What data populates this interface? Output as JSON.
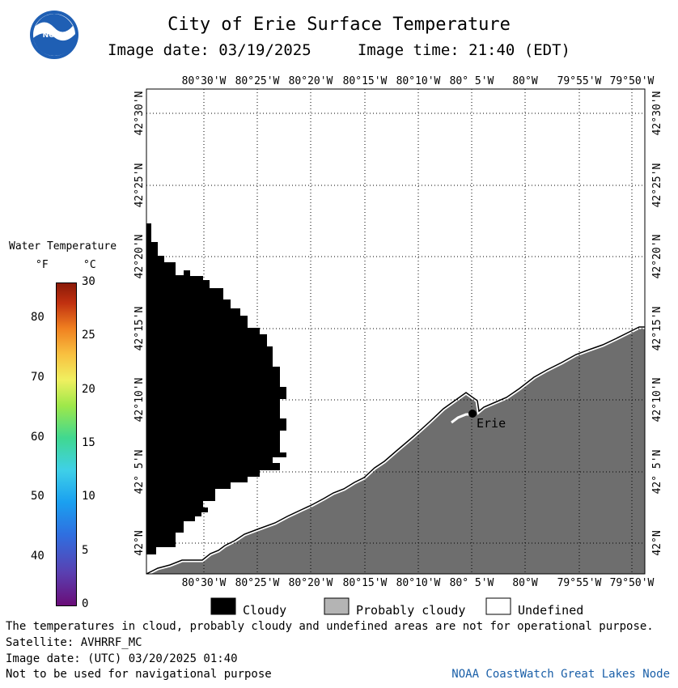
{
  "header": {
    "title": "City of Erie Surface Temperature",
    "subtitle": "Image date: 03/19/2025     Image time: 21:40 (EDT)",
    "logo_text": "NOAA"
  },
  "colorbar": {
    "title": "Water Temperature",
    "unit_f": "°F",
    "unit_c": "°C",
    "f_ticks": [
      "80",
      "70",
      "60",
      "50",
      "40"
    ],
    "c_ticks": [
      "30",
      "25",
      "20",
      "15",
      "10",
      "5",
      "0"
    ],
    "f_range": [
      32,
      86
    ],
    "c_range": [
      0,
      30
    ]
  },
  "map": {
    "lon_labels": [
      "80°30'W",
      "80°25'W",
      "80°20'W",
      "80°15'W",
      "80°10'W",
      "80° 5'W",
      "80°W",
      "79°55'W",
      "79°50'W"
    ],
    "lat_labels": [
      "42°30'N",
      "42°25'N",
      "42°20'N",
      "42°15'N",
      "42°10'N",
      "42° 5'N",
      "42°N"
    ],
    "place": "Erie",
    "colors": {
      "land": "#6e6e6e",
      "cloud": "#000000",
      "water": "#ffffff",
      "grid": "#000000"
    }
  },
  "key": {
    "items": [
      {
        "label": "Cloudy",
        "color": "#000000"
      },
      {
        "label": "Probably cloudy",
        "color": "#b4b4b4"
      },
      {
        "label": "Undefined",
        "color": "#ffffff"
      }
    ]
  },
  "footer": {
    "note": "The temperatures in cloud, probably cloudy and undefined areas are not for operational purpose.",
    "satellite": "Satellite: AVHRRF_MC",
    "utc_date": "Image date: (UTC) 03/20/2025  01:40",
    "nav": "Not to be used for navigational purpose",
    "credit": "NOAA CoastWatch Great Lakes Node"
  }
}
